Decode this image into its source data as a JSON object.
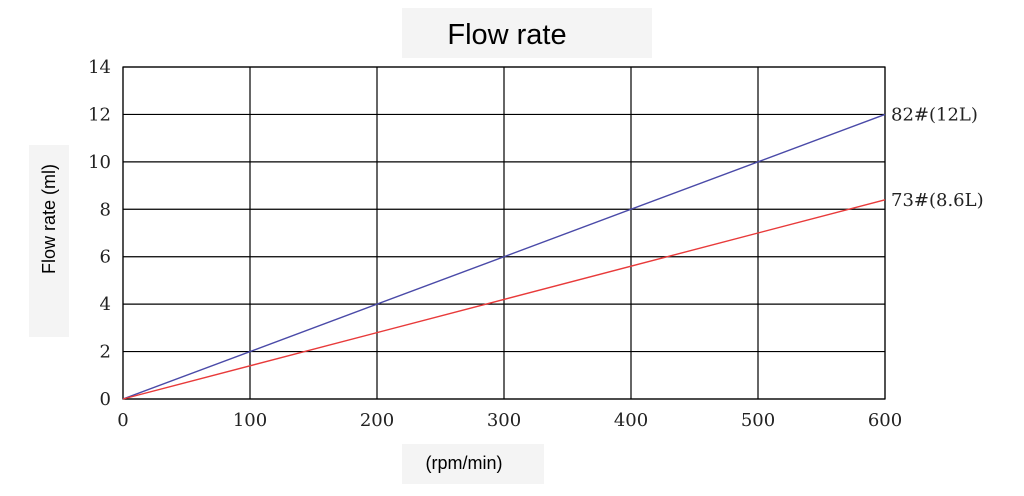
{
  "chart_data": {
    "type": "line",
    "title": "Flow rate",
    "xlabel": "(rpm/min)",
    "ylabel": "Flow rate (ml)",
    "xlim": [
      0,
      600
    ],
    "ylim": [
      0,
      14
    ],
    "x_ticks": [
      0,
      100,
      200,
      300,
      400,
      500,
      600
    ],
    "y_ticks": [
      0,
      2,
      4,
      6,
      8,
      10,
      12,
      14
    ],
    "grid": true,
    "series": [
      {
        "name": "82#(12L)",
        "color": "#4a4aa8",
        "x": [
          0,
          600
        ],
        "values": [
          0,
          12
        ]
      },
      {
        "name": "73#(8.6L)",
        "color": "#e83a3a",
        "x": [
          0,
          600
        ],
        "values": [
          0,
          8.4
        ]
      }
    ]
  }
}
